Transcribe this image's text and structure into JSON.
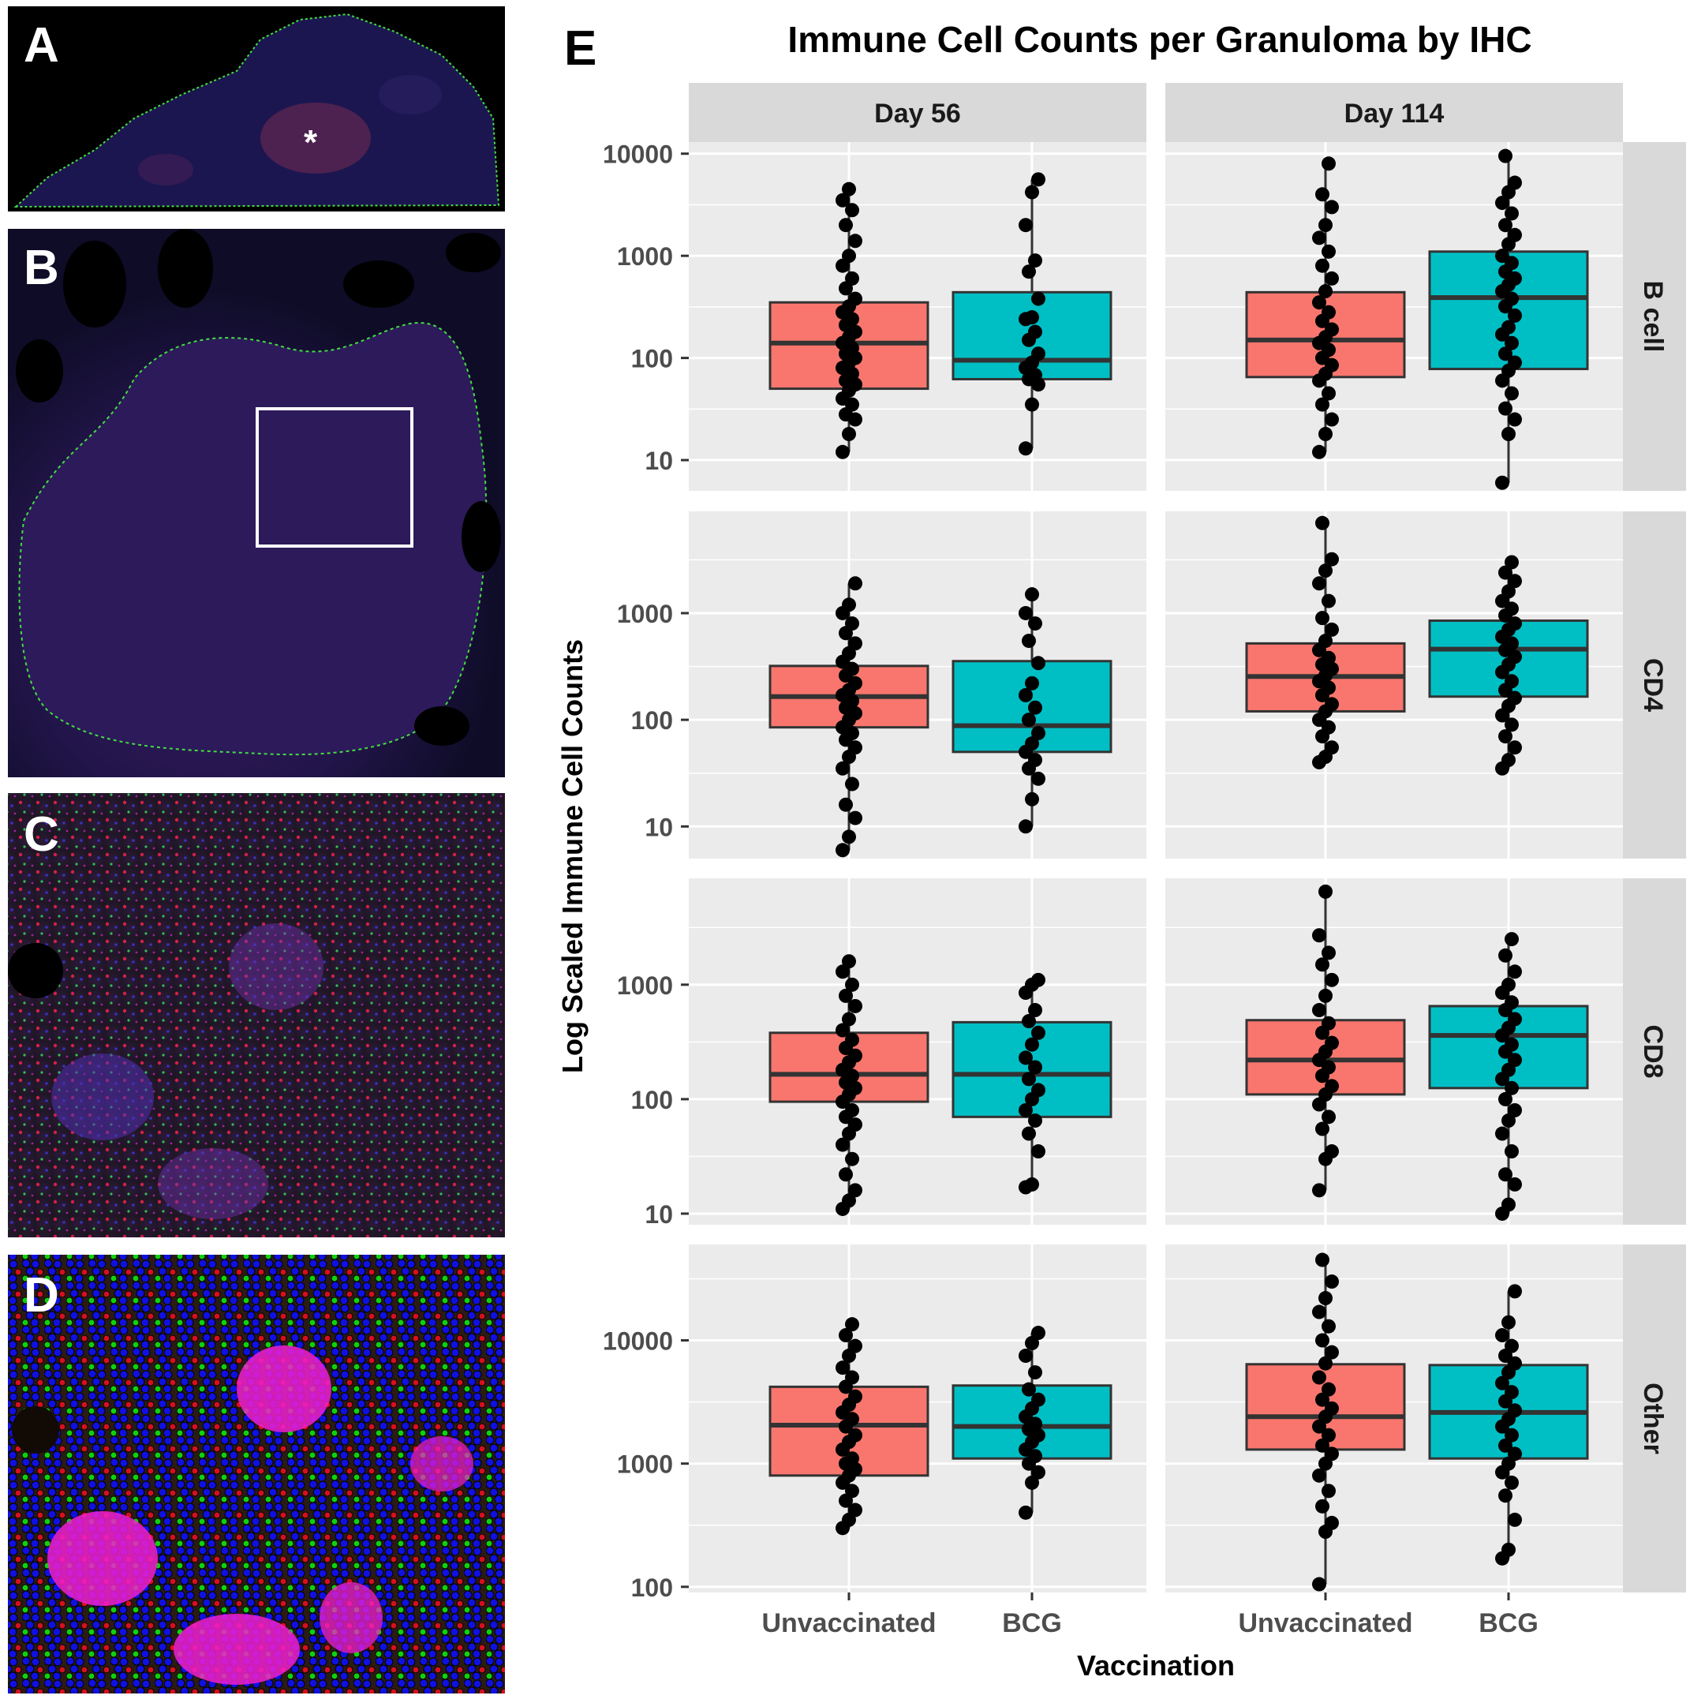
{
  "panels": {
    "A": {
      "label": "A",
      "marker": "*"
    },
    "B": {
      "label": "B"
    },
    "C": {
      "label": "C"
    },
    "D": {
      "label": "D"
    },
    "E": {
      "label": "E"
    }
  },
  "colors": {
    "unvaccinated": "#F8766D",
    "bcg": "#00BFC4",
    "panel_bg": "#EBEBEB",
    "strip_bg": "#D9D9D9",
    "grid": "#FFFFFF",
    "point": "#000000",
    "outline": "#333333"
  },
  "chart_data": {
    "type": "boxplot",
    "title": "Immune Cell Counts per Granuloma by IHC",
    "xlabel": "Vaccination",
    "ylabel": "Log Scaled Immune Cell Counts",
    "yscale": "log10",
    "categories": [
      "Unvaccinated",
      "BCG"
    ],
    "columns": [
      "Day 56",
      "Day 114"
    ],
    "rows": [
      {
        "name": "B cell",
        "ylim": [
          5,
          13000
        ],
        "ticks": [
          10,
          100,
          1000,
          10000
        ],
        "tick_labels": [
          "10",
          "100",
          "1000",
          "10000"
        ],
        "panels": [
          {
            "facet": "Day 56",
            "boxes": [
              {
                "group": "Unvaccinated",
                "q1": 50,
                "median": 140,
                "q3": 350,
                "whisker_low": 12,
                "whisker_high": 4500,
                "points": [
                  12,
                  18,
                  25,
                  28,
                  35,
                  40,
                  48,
                  55,
                  60,
                  70,
                  80,
                  90,
                  100,
                  110,
                  125,
                  140,
                  160,
                  180,
                  210,
                  240,
                  280,
                  320,
                  380,
                  480,
                  600,
                  800,
                  1000,
                  1400,
                  2000,
                  2800,
                  3500,
                  4500
                ]
              },
              {
                "group": "BCG",
                "q1": 62,
                "median": 95,
                "q3": 440,
                "whisker_low": 13,
                "whisker_high": 5600,
                "points": [
                  13,
                  35,
                  55,
                  62,
                  68,
                  80,
                  90,
                  110,
                  150,
                  180,
                  240,
                  250,
                  380,
                  700,
                  900,
                  2000,
                  4200,
                  5600
                ]
              }
            ]
          },
          {
            "facet": "Day 114",
            "boxes": [
              {
                "group": "Unvaccinated",
                "q1": 65,
                "median": 150,
                "q3": 440,
                "whisker_low": 12,
                "whisker_high": 8000,
                "points": [
                  12,
                  18,
                  25,
                  35,
                  45,
                  60,
                  70,
                  85,
                  100,
                  120,
                  140,
                  160,
                  190,
                  230,
                  280,
                  350,
                  450,
                  600,
                  800,
                  1100,
                  1500,
                  2000,
                  3000,
                  4000,
                  8000
                ]
              },
              {
                "group": "BCG",
                "q1": 78,
                "median": 390,
                "q3": 1100,
                "whisker_low": 6,
                "whisker_high": 9500,
                "points": [
                  6,
                  18,
                  25,
                  32,
                  45,
                  60,
                  75,
                  90,
                  110,
                  140,
                  170,
                  200,
                  260,
                  320,
                  380,
                  450,
                  520,
                  600,
                  700,
                  850,
                  1000,
                  1300,
                  1600,
                  2000,
                  2600,
                  3300,
                  4200,
                  5200,
                  9500
                ]
              }
            ]
          }
        ]
      },
      {
        "name": "CD4",
        "ylim": [
          5,
          9000
        ],
        "ticks": [
          10,
          100,
          1000
        ],
        "tick_labels": [
          "10",
          "100",
          "1000"
        ],
        "panels": [
          {
            "facet": "Day 56",
            "boxes": [
              {
                "group": "Unvaccinated",
                "q1": 85,
                "median": 165,
                "q3": 320,
                "whisker_low": 6,
                "whisker_high": 1900,
                "points": [
                  6,
                  8,
                  12,
                  16,
                  25,
                  35,
                  45,
                  55,
                  65,
                  75,
                  85,
                  100,
                  115,
                  130,
                  150,
                  170,
                  190,
                  220,
                  260,
                  300,
                  350,
                  420,
                  520,
                  650,
                  800,
                  1000,
                  1200,
                  1900
                ]
              },
              {
                "group": "BCG",
                "q1": 50,
                "median": 88,
                "q3": 355,
                "whisker_low": 10,
                "whisker_high": 1500,
                "points": [
                  10,
                  18,
                  28,
                  35,
                  42,
                  50,
                  60,
                  75,
                  100,
                  130,
                  170,
                  220,
                  340,
                  550,
                  800,
                  1000,
                  1500
                ]
              }
            ]
          },
          {
            "facet": "Day 114",
            "boxes": [
              {
                "group": "Unvaccinated",
                "q1": 120,
                "median": 255,
                "q3": 520,
                "whisker_low": 40,
                "whisker_high": 7000,
                "points": [
                  40,
                  45,
                  55,
                  70,
                  85,
                  100,
                  120,
                  140,
                  170,
                  200,
                  230,
                  260,
                  300,
                  330,
                  380,
                  450,
                  550,
                  700,
                  900,
                  1300,
                  1900,
                  2500,
                  3200,
                  7000
                ]
              },
              {
                "group": "BCG",
                "q1": 165,
                "median": 460,
                "q3": 850,
                "whisker_low": 35,
                "whisker_high": 3000,
                "points": [
                  35,
                  42,
                  55,
                  70,
                  90,
                  110,
                  135,
                  160,
                  190,
                  230,
                  280,
                  330,
                  390,
                  450,
                  520,
                  600,
                  700,
                  800,
                  950,
                  1100,
                  1300,
                  1600,
                  2000,
                  2400,
                  3000
                ]
              }
            ]
          }
        ]
      },
      {
        "name": "CD8",
        "ylim": [
          8,
          8500
        ],
        "ticks": [
          10,
          100,
          1000
        ],
        "tick_labels": [
          "10",
          "100",
          "1000"
        ],
        "panels": [
          {
            "facet": "Day 56",
            "boxes": [
              {
                "group": "Unvaccinated",
                "q1": 95,
                "median": 165,
                "q3": 380,
                "whisker_low": 11,
                "whisker_high": 1600,
                "points": [
                  11,
                  13,
                  16,
                  22,
                  30,
                  40,
                  50,
                  60,
                  70,
                  80,
                  95,
                  110,
                  125,
                  140,
                  160,
                  180,
                  210,
                  240,
                  280,
                  330,
                  400,
                  500,
                  650,
                  800,
                  1000,
                  1300,
                  1600
                ]
              },
              {
                "group": "BCG",
                "q1": 70,
                "median": 165,
                "q3": 470,
                "whisker_low": 17,
                "whisker_high": 1100,
                "points": [
                  17,
                  18,
                  35,
                  50,
                  65,
                  80,
                  100,
                  120,
                  150,
                  190,
                  230,
                  300,
                  380,
                  480,
                  600,
                  850,
                  1000,
                  1100
                ]
              }
            ]
          },
          {
            "facet": "Day 114",
            "boxes": [
              {
                "group": "Unvaccinated",
                "q1": 110,
                "median": 220,
                "q3": 490,
                "whisker_low": 16,
                "whisker_high": 6500,
                "points": [
                  16,
                  30,
                  35,
                  55,
                  70,
                  90,
                  110,
                  130,
                  160,
                  190,
                  220,
                  260,
                  310,
                  380,
                  460,
                  600,
                  800,
                  1100,
                  1500,
                  1900,
                  2700,
                  6500
                ]
              },
              {
                "group": "BCG",
                "q1": 125,
                "median": 360,
                "q3": 650,
                "whisker_low": 10,
                "whisker_high": 2500,
                "points": [
                  10,
                  12,
                  18,
                  22,
                  35,
                  50,
                  65,
                  80,
                  100,
                  125,
                  150,
                  180,
                  220,
                  260,
                  300,
                  360,
                  420,
                  500,
                  600,
                  700,
                  850,
                  1000,
                  1300,
                  1800,
                  2500
                ]
              }
            ]
          }
        ]
      },
      {
        "name": "Other",
        "ylim": [
          90,
          60000
        ],
        "ticks": [
          100,
          1000,
          10000
        ],
        "tick_labels": [
          "100",
          "1000",
          "10000"
        ],
        "panels": [
          {
            "facet": "Day 56",
            "boxes": [
              {
                "group": "Unvaccinated",
                "q1": 800,
                "median": 2050,
                "q3": 4200,
                "whisker_low": 300,
                "whisker_high": 13500,
                "points": [
                  300,
                  350,
                  420,
                  500,
                  600,
                  700,
                  800,
                  900,
                  1000,
                  1100,
                  1300,
                  1500,
                  1700,
                  2000,
                  2300,
                  2600,
                  3000,
                  3500,
                  4200,
                  5000,
                  6000,
                  7500,
                  9000,
                  11000,
                  13500
                ]
              },
              {
                "group": "BCG",
                "q1": 1100,
                "median": 2000,
                "q3": 4300,
                "whisker_low": 400,
                "whisker_high": 11500,
                "points": [
                  400,
                  700,
                  850,
                  1000,
                  1150,
                  1300,
                  1500,
                  1700,
                  1900,
                  2100,
                  2400,
                  2800,
                  3300,
                  4000,
                  5500,
                  7500,
                  9500,
                  11500
                ]
              }
            ]
          },
          {
            "facet": "Day 114",
            "boxes": [
              {
                "group": "Unvaccinated",
                "q1": 1300,
                "median": 2400,
                "q3": 6400,
                "whisker_low": 105,
                "whisker_high": 45000,
                "points": [
                  105,
                  280,
                  330,
                  450,
                  600,
                  800,
                  1000,
                  1200,
                  1400,
                  1700,
                  2000,
                  2400,
                  2800,
                  3300,
                  4000,
                  5000,
                  6500,
                  8000,
                  10000,
                  13000,
                  17000,
                  22000,
                  30000,
                  45000
                ]
              },
              {
                "group": "BCG",
                "q1": 1100,
                "median": 2600,
                "q3": 6300,
                "whisker_low": 170,
                "whisker_high": 25000,
                "points": [
                  170,
                  200,
                  350,
                  550,
                  700,
                  850,
                  1000,
                  1200,
                  1400,
                  1700,
                  2000,
                  2300,
                  2700,
                  3200,
                  3800,
                  4500,
                  5500,
                  6500,
                  7500,
                  9000,
                  11000,
                  14000,
                  25000
                ]
              }
            ]
          }
        ]
      }
    ]
  }
}
